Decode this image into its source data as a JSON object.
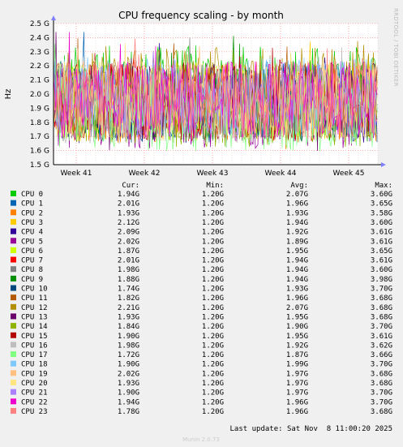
{
  "chart_data": {
    "type": "line",
    "title": "CPU frequency scaling - by month",
    "ylabel": "Hz",
    "y_ticks": [
      "1.5 G",
      "1.6 G",
      "1.7 G",
      "1.8 G",
      "1.9 G",
      "2.0 G",
      "2.1 G",
      "2.2 G",
      "2.3 G",
      "2.4 G",
      "2.5 G"
    ],
    "ylim": [
      1.5,
      2.5
    ],
    "y_unit": "GHz",
    "x_ticks": [
      "Week 41",
      "Week 42",
      "Week 43",
      "Week 44",
      "Week 45"
    ],
    "grid": true,
    "legend_placement": "bottom",
    "legend_headers": {
      "cur": "Cur:",
      "min": "Min:",
      "avg": "Avg:",
      "max": "Max:"
    },
    "series": [
      {
        "name": "CPU 0",
        "color": "#00cc00",
        "cur": "1.94G",
        "min": "1.20G",
        "avg": "2.07G",
        "max": "3.60G"
      },
      {
        "name": "CPU 1",
        "color": "#0066b3",
        "cur": "2.01G",
        "min": "1.20G",
        "avg": "1.96G",
        "max": "3.65G"
      },
      {
        "name": "CPU 2",
        "color": "#ff8000",
        "cur": "1.93G",
        "min": "1.20G",
        "avg": "1.93G",
        "max": "3.58G"
      },
      {
        "name": "CPU 3",
        "color": "#ffcc00",
        "cur": "2.12G",
        "min": "1.20G",
        "avg": "1.94G",
        "max": "3.60G"
      },
      {
        "name": "CPU 4",
        "color": "#330099",
        "cur": "2.09G",
        "min": "1.20G",
        "avg": "1.92G",
        "max": "3.61G"
      },
      {
        "name": "CPU 5",
        "color": "#990099",
        "cur": "2.02G",
        "min": "1.20G",
        "avg": "1.89G",
        "max": "3.61G"
      },
      {
        "name": "CPU 6",
        "color": "#ccff00",
        "cur": "1.87G",
        "min": "1.20G",
        "avg": "1.95G",
        "max": "3.65G"
      },
      {
        "name": "CPU 7",
        "color": "#ff0000",
        "cur": "2.01G",
        "min": "1.20G",
        "avg": "1.94G",
        "max": "3.61G"
      },
      {
        "name": "CPU 8",
        "color": "#808080",
        "cur": "1.98G",
        "min": "1.20G",
        "avg": "1.94G",
        "max": "3.60G"
      },
      {
        "name": "CPU 9",
        "color": "#008f00",
        "cur": "1.88G",
        "min": "1.20G",
        "avg": "1.94G",
        "max": "3.98G"
      },
      {
        "name": "CPU 10",
        "color": "#00487d",
        "cur": "1.74G",
        "min": "1.20G",
        "avg": "1.93G",
        "max": "3.70G"
      },
      {
        "name": "CPU 11",
        "color": "#b35a00",
        "cur": "1.82G",
        "min": "1.20G",
        "avg": "1.96G",
        "max": "3.68G"
      },
      {
        "name": "CPU 12",
        "color": "#b38f00",
        "cur": "2.21G",
        "min": "1.20G",
        "avg": "2.07G",
        "max": "3.68G"
      },
      {
        "name": "CPU 13",
        "color": "#6b006b",
        "cur": "1.93G",
        "min": "1.20G",
        "avg": "1.95G",
        "max": "3.68G"
      },
      {
        "name": "CPU 14",
        "color": "#8fb300",
        "cur": "1.84G",
        "min": "1.20G",
        "avg": "1.90G",
        "max": "3.70G"
      },
      {
        "name": "CPU 15",
        "color": "#b30000",
        "cur": "1.90G",
        "min": "1.20G",
        "avg": "1.95G",
        "max": "3.61G"
      },
      {
        "name": "CPU 16",
        "color": "#bebebe",
        "cur": "1.98G",
        "min": "1.20G",
        "avg": "1.92G",
        "max": "3.62G"
      },
      {
        "name": "CPU 17",
        "color": "#80ff80",
        "cur": "1.72G",
        "min": "1.20G",
        "avg": "1.87G",
        "max": "3.66G"
      },
      {
        "name": "CPU 18",
        "color": "#80c9ff",
        "cur": "1.90G",
        "min": "1.20G",
        "avg": "1.99G",
        "max": "3.70G"
      },
      {
        "name": "CPU 19",
        "color": "#ffc080",
        "cur": "2.02G",
        "min": "1.20G",
        "avg": "1.97G",
        "max": "3.68G"
      },
      {
        "name": "CPU 20",
        "color": "#ffe680",
        "cur": "1.93G",
        "min": "1.20G",
        "avg": "1.97G",
        "max": "3.68G"
      },
      {
        "name": "CPU 21",
        "color": "#aa80ff",
        "cur": "1.90G",
        "min": "1.20G",
        "avg": "1.97G",
        "max": "3.70G"
      },
      {
        "name": "CPU 22",
        "color": "#ee00cc",
        "cur": "1.94G",
        "min": "1.20G",
        "avg": "1.96G",
        "max": "3.70G"
      },
      {
        "name": "CPU 23",
        "color": "#ff8080",
        "cur": "1.78G",
        "min": "1.20G",
        "avg": "1.96G",
        "max": "3.68G"
      }
    ]
  },
  "side_label": "RRDTOOL / TOBI OETIKER",
  "last_update": "Last update: Sat Nov  8 11:00:20 2025",
  "footer": "Munin 2.0.73"
}
